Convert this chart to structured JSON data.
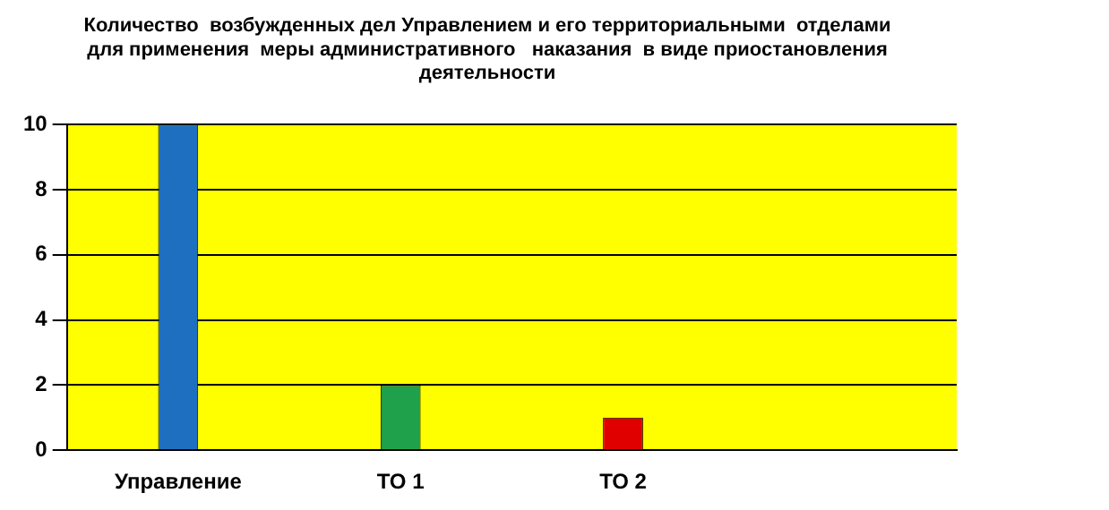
{
  "chart_data": {
    "type": "bar",
    "title": "Количество  возбужденных дел Управлением и его территориальными  отделами\nдля применения  меры административного   наказания  в виде приостановления\nдеятельности",
    "categories": [
      "Управление",
      "ТО 1",
      "ТО 2",
      null
    ],
    "values": [
      10,
      2,
      1,
      null
    ],
    "colors": [
      "#1f6fc0",
      "#1fa04a",
      "#e00000",
      "#000000"
    ],
    "ylim": [
      0,
      10
    ],
    "yticks": [
      0,
      2,
      4,
      6,
      8,
      10
    ],
    "grid": "y",
    "legend": false
  }
}
